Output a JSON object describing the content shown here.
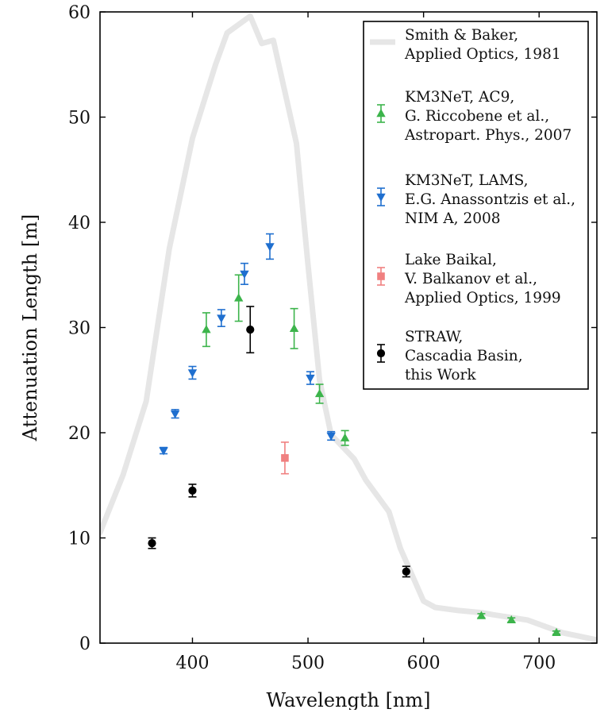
{
  "chart_data": {
    "type": "scatter",
    "xlabel": "Wavelength [nm]",
    "ylabel": "Attenuation Length [m]",
    "xlim": [
      320,
      750
    ],
    "ylim": [
      0,
      60
    ],
    "x_ticks": [
      400,
      500,
      600,
      700
    ],
    "y_ticks": [
      0,
      10,
      20,
      30,
      40,
      50,
      60
    ],
    "grid": false,
    "legend_position": "top-right",
    "series": [
      {
        "name": "Smith & Baker, Applied Optics, 1981",
        "legend_lines": [
          "Smith & Baker,",
          "Applied Optics, 1981"
        ],
        "kind": "line",
        "color": "#e6e6e6",
        "points": [
          [
            320,
            10.5
          ],
          [
            340,
            16
          ],
          [
            360,
            23
          ],
          [
            380,
            37.5
          ],
          [
            400,
            48
          ],
          [
            420,
            55
          ],
          [
            430,
            58
          ],
          [
            450,
            59.6
          ],
          [
            460,
            57
          ],
          [
            470,
            57.3
          ],
          [
            490,
            47.5
          ],
          [
            500,
            36
          ],
          [
            510,
            25
          ],
          [
            520,
            19.8
          ],
          [
            540,
            17.5
          ],
          [
            550,
            15.5
          ],
          [
            570,
            12.5
          ],
          [
            580,
            9
          ],
          [
            600,
            4
          ],
          [
            610,
            3.4
          ],
          [
            630,
            3.1
          ],
          [
            650,
            2.9
          ],
          [
            660,
            2.7
          ],
          [
            690,
            2.2
          ],
          [
            720,
            1
          ],
          [
            750,
            0.3
          ]
        ]
      },
      {
        "name": "KM3NeT, AC9, G. Riccobene et al., Astropart. Phys., 2007",
        "legend_lines": [
          "KM3NeT, AC9,",
          "G. Riccobene et al.,",
          "Astropart. Phys., 2007"
        ],
        "kind": "errorbar",
        "marker": "triangle-up",
        "color": "#3cb44b",
        "points": [
          [
            412,
            29.8,
            1.6
          ],
          [
            440,
            32.8,
            2.2
          ],
          [
            488,
            29.9,
            1.9
          ],
          [
            510,
            23.7,
            0.9
          ],
          [
            532,
            19.5,
            0.7
          ],
          [
            650,
            2.6,
            0.2
          ],
          [
            676,
            2.2,
            0.2
          ],
          [
            715,
            1.0,
            0.15
          ]
        ]
      },
      {
        "name": "KM3NeT, LAMS, E.G. Anassontzis et al., NIM A, 2008",
        "legend_lines": [
          "KM3NeT, LAMS,",
          "E.G. Anassontzis et al.,",
          "NIM A, 2008"
        ],
        "kind": "errorbar",
        "marker": "triangle-down",
        "color": "#1f6fcf",
        "points": [
          [
            375,
            18.3,
            0.3
          ],
          [
            385,
            21.8,
            0.4
          ],
          [
            400,
            25.7,
            0.6
          ],
          [
            425,
            30.9,
            0.8
          ],
          [
            445,
            35.1,
            1.0
          ],
          [
            467,
            37.7,
            1.2
          ],
          [
            502,
            25.2,
            0.6
          ],
          [
            520,
            19.7,
            0.4
          ]
        ]
      },
      {
        "name": "Lake Baikal, V. Balkanov et al., Applied Optics, 1999",
        "legend_lines": [
          "Lake Baikal,",
          "V. Balkanov et al.,",
          "Applied Optics, 1999"
        ],
        "kind": "errorbar",
        "marker": "square",
        "color": "#f08080",
        "points": [
          [
            480,
            17.6,
            1.5
          ]
        ]
      },
      {
        "name": "STRAW, Cascadia Basin, this Work",
        "legend_lines": [
          "STRAW,",
          "Cascadia Basin,",
          "this Work"
        ],
        "kind": "errorbar",
        "marker": "circle",
        "color": "#000000",
        "points": [
          [
            365,
            9.5,
            0.5
          ],
          [
            400,
            14.5,
            0.6
          ],
          [
            450,
            29.8,
            2.2
          ],
          [
            585,
            6.8,
            0.5
          ]
        ]
      }
    ]
  }
}
